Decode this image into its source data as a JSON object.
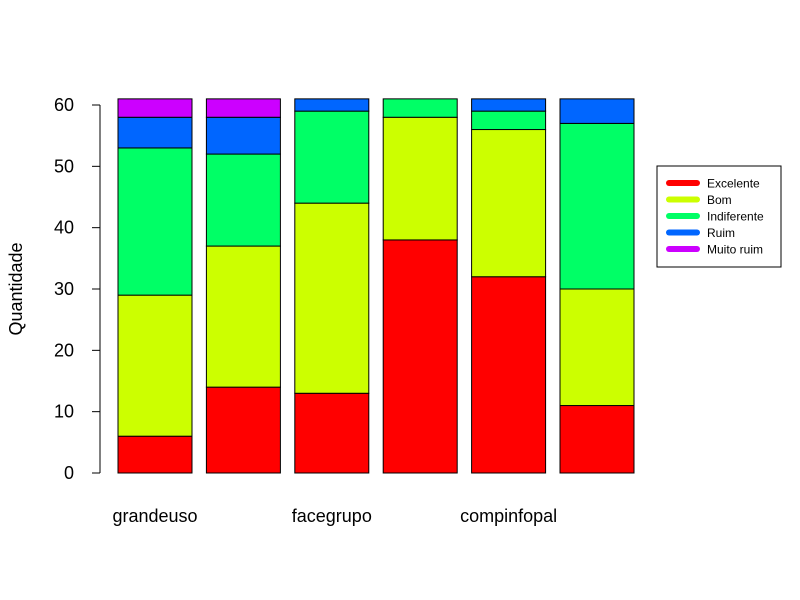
{
  "chart_data": {
    "type": "bar",
    "stacked": true,
    "title": "",
    "xlabel": "",
    "ylabel": "Quantidade",
    "ylim": [
      0,
      60
    ],
    "yticks": [
      0,
      10,
      20,
      30,
      40,
      50,
      60
    ],
    "categories": [
      "grandeuso",
      "",
      "facegrupo",
      "",
      "compinfopal",
      ""
    ],
    "series": [
      {
        "name": "Excelente",
        "color": "#FF0000",
        "values": [
          6,
          14,
          13,
          38,
          32,
          11
        ]
      },
      {
        "name": "Bom",
        "color": "#CCFF00",
        "values": [
          23,
          23,
          31,
          20,
          24,
          19
        ]
      },
      {
        "name": "Indiferente",
        "color": "#00FF66",
        "values": [
          24,
          15,
          15,
          3,
          3,
          27
        ]
      },
      {
        "name": "Ruim",
        "color": "#0066FF",
        "values": [
          5,
          6,
          2,
          0,
          2,
          4
        ]
      },
      {
        "name": "Muito ruim",
        "color": "#CC00FF",
        "values": [
          3,
          3,
          0,
          0,
          0,
          0
        ]
      }
    ],
    "grid": false,
    "legend_position": "right"
  }
}
